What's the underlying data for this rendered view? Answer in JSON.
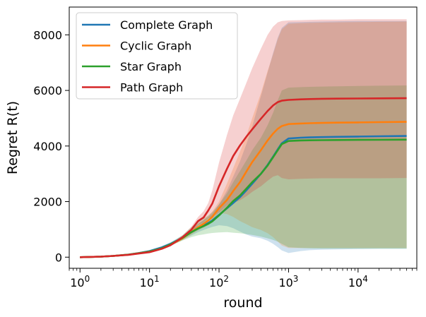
{
  "chart_data": {
    "type": "line",
    "title": "",
    "xlabel": "round",
    "ylabel": "Regret R(t)",
    "xscale": "log",
    "xlim": [
      0.7,
      70000
    ],
    "ylim": [
      -400,
      9000
    ],
    "x_ticks": [
      {
        "value": 1,
        "base": "10",
        "exp": "0"
      },
      {
        "value": 10,
        "base": "10",
        "exp": "1"
      },
      {
        "value": 100,
        "base": "10",
        "exp": "2"
      },
      {
        "value": 1000,
        "base": "10",
        "exp": "3"
      },
      {
        "value": 10000,
        "base": "10",
        "exp": "4"
      }
    ],
    "y_ticks": [
      0,
      2000,
      4000,
      6000,
      8000
    ],
    "legend_position": "top-left",
    "grid": false,
    "x": [
      1,
      2,
      3,
      5,
      7,
      10,
      15,
      20,
      30,
      40,
      50,
      60,
      70,
      80,
      100,
      130,
      160,
      200,
      250,
      300,
      400,
      500,
      600,
      700,
      800,
      1000,
      1500,
      2000,
      3000,
      5000,
      10000,
      20000,
      50000
    ],
    "series": [
      {
        "name": "Complete Graph",
        "color": "#1f77b4",
        "values": [
          0,
          18,
          45,
          95,
          150,
          220,
          350,
          480,
          700,
          900,
          1050,
          1150,
          1230,
          1320,
          1520,
          1760,
          1950,
          2160,
          2420,
          2640,
          3000,
          3320,
          3620,
          3880,
          4100,
          4270,
          4300,
          4310,
          4320,
          4330,
          4340,
          4350,
          4360
        ],
        "band_low": [
          0,
          16,
          40,
          85,
          130,
          190,
          300,
          420,
          620,
          780,
          900,
          980,
          1040,
          1090,
          1150,
          1120,
          1040,
          920,
          810,
          740,
          680,
          590,
          480,
          360,
          240,
          150,
          220,
          250,
          270,
          280,
          290,
          300,
          300
        ],
        "band_high": [
          0,
          20,
          50,
          105,
          170,
          250,
          400,
          540,
          780,
          1020,
          1200,
          1330,
          1440,
          1560,
          1900,
          2400,
          2900,
          3450,
          4100,
          4700,
          5800,
          6650,
          7350,
          7900,
          8250,
          8450,
          8460,
          8470,
          8480,
          8490,
          8500,
          8500,
          8500
        ]
      },
      {
        "name": "Cyclic Graph",
        "color": "#ff7f0e",
        "values": [
          0,
          18,
          45,
          90,
          140,
          200,
          320,
          450,
          680,
          900,
          1080,
          1200,
          1320,
          1450,
          1760,
          2060,
          2380,
          2700,
          3100,
          3420,
          3850,
          4200,
          4450,
          4620,
          4720,
          4790,
          4810,
          4820,
          4830,
          4840,
          4850,
          4860,
          4870
        ],
        "band_low": [
          0,
          16,
          40,
          80,
          125,
          180,
          290,
          410,
          620,
          810,
          960,
          1060,
          1150,
          1260,
          1600,
          1550,
          1450,
          1300,
          1180,
          1080,
          980,
          860,
          720,
          560,
          420,
          330,
          330,
          330,
          330,
          330,
          330,
          330,
          330
        ],
        "band_high": [
          0,
          20,
          50,
          100,
          155,
          220,
          350,
          490,
          740,
          990,
          1200,
          1340,
          1480,
          1640,
          2000,
          2650,
          3200,
          3800,
          4400,
          5000,
          5900,
          6700,
          7300,
          7850,
          8200,
          8400,
          8420,
          8430,
          8440,
          8450,
          8460,
          8470,
          8480
        ]
      },
      {
        "name": "Star Graph",
        "color": "#2ca02c",
        "values": [
          0,
          18,
          45,
          90,
          140,
          200,
          320,
          460,
          700,
          900,
          1030,
          1120,
          1200,
          1290,
          1500,
          1780,
          2020,
          2220,
          2480,
          2700,
          3000,
          3300,
          3600,
          3850,
          4070,
          4180,
          4200,
          4205,
          4210,
          4215,
          4220,
          4225,
          4230
        ],
        "band_low": [
          0,
          16,
          40,
          80,
          125,
          180,
          290,
          410,
          600,
          720,
          790,
          820,
          850,
          870,
          890,
          900,
          880,
          860,
          830,
          800,
          740,
          680,
          620,
          560,
          480,
          360,
          330,
          320,
          310,
          310,
          310,
          310,
          310
        ],
        "band_high": [
          0,
          20,
          50,
          100,
          155,
          220,
          350,
          510,
          800,
          1080,
          1280,
          1400,
          1500,
          1620,
          1900,
          2300,
          2700,
          3100,
          3500,
          3850,
          4300,
          4750,
          5200,
          5650,
          6000,
          6100,
          6120,
          6130,
          6140,
          6150,
          6160,
          6170,
          6180
        ]
      },
      {
        "name": "Path Graph",
        "color": "#d62728",
        "values": [
          0,
          18,
          45,
          85,
          130,
          180,
          300,
          430,
          720,
          990,
          1300,
          1430,
          1680,
          1930,
          2550,
          3180,
          3640,
          4020,
          4350,
          4600,
          4980,
          5260,
          5460,
          5580,
          5630,
          5660,
          5680,
          5690,
          5700,
          5705,
          5710,
          5715,
          5720
        ],
        "band_low": [
          0,
          16,
          40,
          78,
          118,
          165,
          270,
          390,
          650,
          880,
          1150,
          1250,
          1400,
          1450,
          1600,
          1850,
          1950,
          2050,
          2200,
          2350,
          2550,
          2750,
          2900,
          2950,
          2850,
          2800,
          2820,
          2830,
          2840,
          2840,
          2840,
          2840,
          2850
        ],
        "band_high": [
          0,
          20,
          50,
          92,
          142,
          195,
          330,
          470,
          790,
          1100,
          1450,
          1650,
          1950,
          2400,
          3400,
          4400,
          5100,
          5700,
          6300,
          6800,
          7500,
          8000,
          8300,
          8450,
          8500,
          8520,
          8530,
          8540,
          8550,
          8550,
          8560,
          8560,
          8560
        ]
      }
    ]
  }
}
